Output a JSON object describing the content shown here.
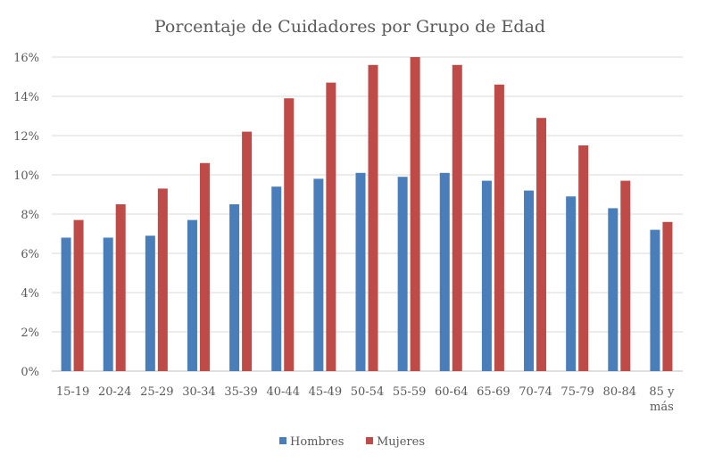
{
  "chart_data": {
    "type": "bar",
    "title": "Porcentaje de Cuidadores por Grupo de Edad",
    "xlabel": "",
    "ylabel": "",
    "ylim": [
      0,
      16
    ],
    "yticks": [
      "0%",
      "2%",
      "4%",
      "6%",
      "8%",
      "10%",
      "12%",
      "14%",
      "16%"
    ],
    "grid": true,
    "legend_position": "bottom",
    "categories": [
      "15-19",
      "20-24",
      "25-29",
      "30-34",
      "35-39",
      "40-44",
      "45-49",
      "50-54",
      "55-59",
      "60-64",
      "65-69",
      "70-74",
      "75-79",
      "80-84",
      "85 y más"
    ],
    "series": [
      {
        "name": "Hombres",
        "color": "#4a7ebb",
        "values": [
          6.8,
          6.8,
          6.9,
          7.7,
          8.5,
          9.4,
          9.8,
          10.1,
          9.9,
          10.1,
          9.7,
          9.2,
          8.9,
          8.3,
          7.2
        ]
      },
      {
        "name": "Mujeres",
        "color": "#be4b48",
        "values": [
          7.7,
          8.5,
          9.3,
          10.6,
          12.2,
          13.9,
          14.7,
          15.6,
          16.0,
          15.6,
          14.6,
          12.9,
          11.5,
          9.7,
          7.6
        ]
      }
    ]
  }
}
